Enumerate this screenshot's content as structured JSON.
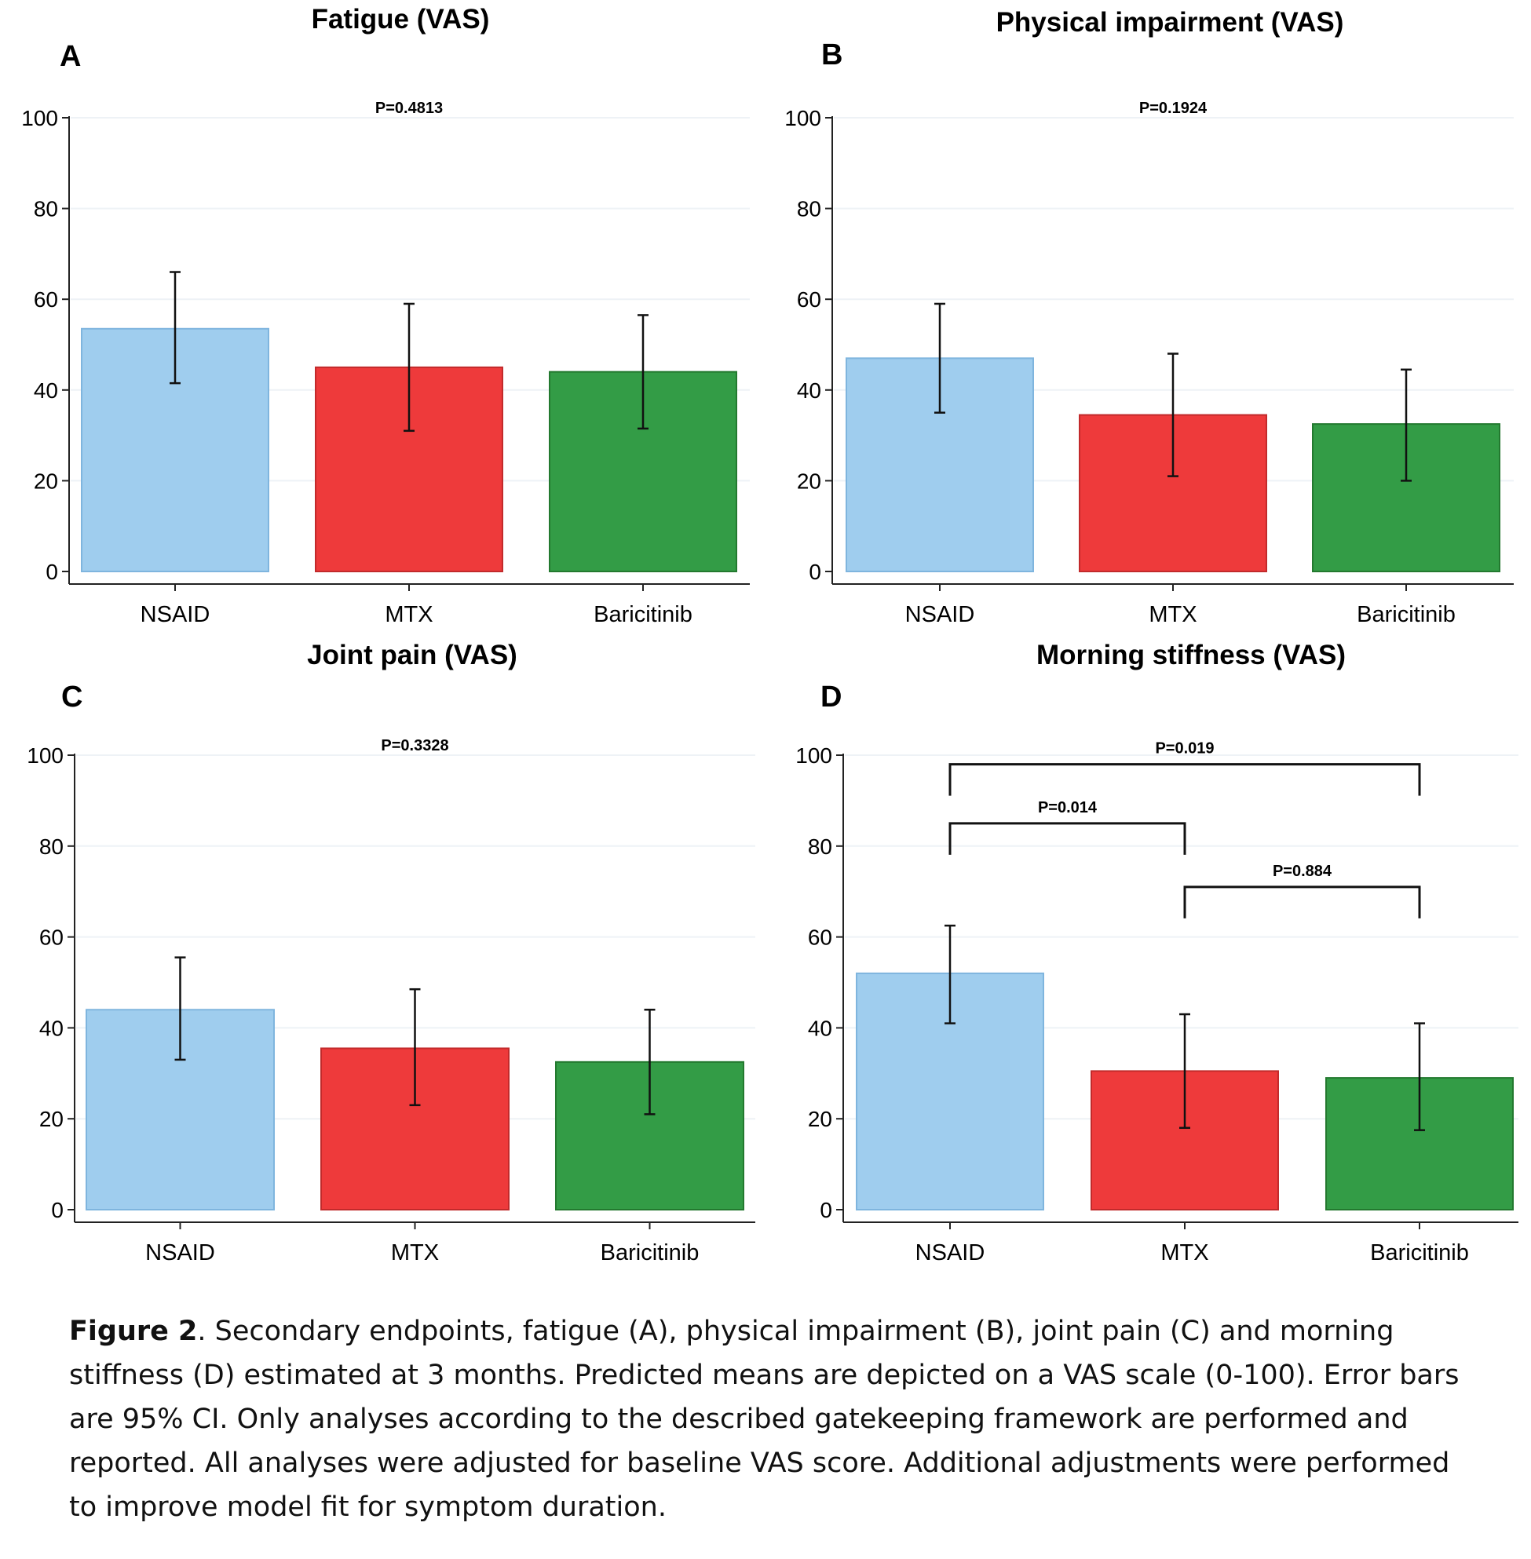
{
  "chart_data": [
    {
      "type": "bar",
      "letter": "A",
      "title": "Fatigue (VAS)",
      "categories": [
        "NSAID",
        "MTX",
        "Baricitinib"
      ],
      "values": [
        53.5,
        45,
        44
      ],
      "ci_low": [
        41.5,
        31,
        31.5
      ],
      "ci_high": [
        66,
        59,
        56.5
      ],
      "ylim": [
        0,
        100
      ],
      "yticks": [
        "0",
        "20",
        "40",
        "60",
        "80",
        "100"
      ],
      "pvalues": [
        {
          "label": "P=0.4813",
          "from": null,
          "to": null,
          "level": 101
        }
      ]
    },
    {
      "type": "bar",
      "letter": "B",
      "title": "Physical impairment (VAS)",
      "categories": [
        "NSAID",
        "MTX",
        "Baricitinib"
      ],
      "values": [
        47,
        34.5,
        32.5
      ],
      "ci_low": [
        35,
        21,
        20
      ],
      "ci_high": [
        59,
        48,
        44.5
      ],
      "ylim": [
        0,
        100
      ],
      "yticks": [
        "0",
        "20",
        "40",
        "60",
        "80",
        "100"
      ],
      "pvalues": [
        {
          "label": "P=0.1924",
          "from": null,
          "to": null,
          "level": 101
        }
      ]
    },
    {
      "type": "bar",
      "letter": "C",
      "title": "Joint pain (VAS)",
      "categories": [
        "NSAID",
        "MTX",
        "Baricitinib"
      ],
      "values": [
        44,
        35.5,
        32.5
      ],
      "ci_low": [
        33,
        23,
        21
      ],
      "ci_high": [
        55.5,
        48.5,
        44
      ],
      "ylim": [
        0,
        100
      ],
      "yticks": [
        "0",
        "20",
        "40",
        "60",
        "80",
        "100"
      ],
      "pvalues": [
        {
          "label": "P=0.3328",
          "from": null,
          "to": null,
          "level": 101
        }
      ]
    },
    {
      "type": "bar",
      "letter": "D",
      "title": "Morning stiffness (VAS)",
      "categories": [
        "NSAID",
        "MTX",
        "Baricitinib"
      ],
      "values": [
        52,
        30.5,
        29
      ],
      "ci_low": [
        41,
        18,
        17.5
      ],
      "ci_high": [
        62.5,
        43,
        41
      ],
      "ylim": [
        0,
        100
      ],
      "yticks": [
        "0",
        "20",
        "40",
        "60",
        "80",
        "100"
      ],
      "pvalues": [
        {
          "label": "P=0.019",
          "from": 0,
          "to": 2,
          "level": 98
        },
        {
          "label": "P=0.014",
          "from": 0,
          "to": 1,
          "level": 85
        },
        {
          "label": "P=0.884",
          "from": 1,
          "to": 2,
          "level": 71
        }
      ]
    }
  ],
  "colors": {
    "bars": [
      "#9fcdee",
      "#ee3a3b",
      "#339c46"
    ],
    "bar_edges": [
      "#7fb5de",
      "#c22a2b",
      "#23792f"
    ],
    "grid": "#eef2f6"
  },
  "caption": {
    "label": "Figure 2",
    "text": ". Secondary endpoints, fatigue (A), physical impairment (B), joint pain (C) and morning stiffness (D) estimated at 3 months. Predicted means are depicted on a VAS scale (0-100). Error bars are 95% CI. Only analyses according to the described gatekeeping framework are performed and reported. All analyses were adjusted for baseline VAS score. Additional adjustments were performed to improve model fit for symptom duration."
  }
}
